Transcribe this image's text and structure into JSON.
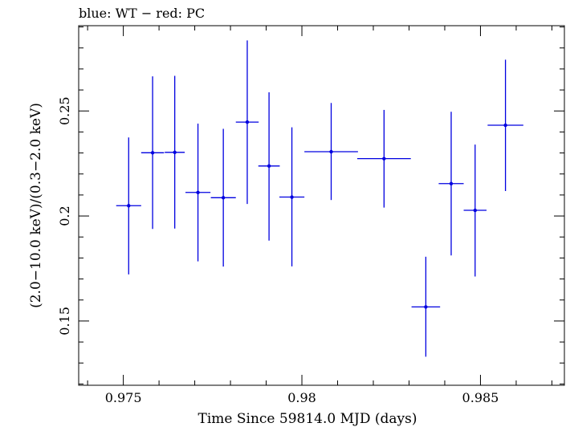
{
  "chart_data": {
    "type": "scatter",
    "title": "blue: WT − red: PC",
    "xlabel": "Time Since 59814.0 MJD (days)",
    "ylabel": "(2.0−10.0 keV)/(0.3−2.0 keV)",
    "xlim": [
      0.97375,
      0.98735
    ],
    "ylim": [
      0.1194,
      0.2906
    ],
    "x_ticks": [
      0.975,
      0.98,
      0.985
    ],
    "x_tick_labels": [
      "0.975",
      "0.98",
      "0.985"
    ],
    "y_ticks": [
      0.15,
      0.2,
      0.25
    ],
    "y_tick_labels": [
      "0.15",
      "0.2",
      "0.25"
    ],
    "grid": false,
    "series": [
      {
        "color": "#0000e0",
        "points": [
          {
            "x": 0.97515,
            "y": 0.2049,
            "xerr": 0.00035,
            "yerr_low": 0.0327,
            "yerr_high": 0.0325
          },
          {
            "x": 0.97582,
            "y": 0.2301,
            "xerr": 0.00032,
            "yerr_low": 0.0363,
            "yerr_high": 0.0364
          },
          {
            "x": 0.97644,
            "y": 0.2303,
            "xerr": 0.00028,
            "yerr_low": 0.0363,
            "yerr_high": 0.0364
          },
          {
            "x": 0.97709,
            "y": 0.2112,
            "xerr": 0.00035,
            "yerr_low": 0.0328,
            "yerr_high": 0.0328
          },
          {
            "x": 0.9778,
            "y": 0.2087,
            "xerr": 0.00035,
            "yerr_low": 0.0328,
            "yerr_high": 0.0328
          },
          {
            "x": 0.97847,
            "y": 0.2447,
            "xerr": 0.00032,
            "yerr_low": 0.039,
            "yerr_high": 0.0389
          },
          {
            "x": 0.97908,
            "y": 0.2238,
            "xerr": 0.0003,
            "yerr_low": 0.0355,
            "yerr_high": 0.0351
          },
          {
            "x": 0.97972,
            "y": 0.209,
            "xerr": 0.00035,
            "yerr_low": 0.033,
            "yerr_high": 0.0332
          },
          {
            "x": 0.98082,
            "y": 0.2306,
            "xerr": 0.00075,
            "yerr_low": 0.023,
            "yerr_high": 0.0232
          },
          {
            "x": 0.9823,
            "y": 0.2273,
            "xerr": 0.00075,
            "yerr_low": 0.0233,
            "yerr_high": 0.0232
          },
          {
            "x": 0.98347,
            "y": 0.1567,
            "xerr": 0.0004,
            "yerr_low": 0.0237,
            "yerr_high": 0.0239
          },
          {
            "x": 0.98418,
            "y": 0.2154,
            "xerr": 0.00035,
            "yerr_low": 0.0342,
            "yerr_high": 0.0342
          },
          {
            "x": 0.98485,
            "y": 0.2027,
            "xerr": 0.00032,
            "yerr_low": 0.0315,
            "yerr_high": 0.0313
          },
          {
            "x": 0.9857,
            "y": 0.2432,
            "xerr": 0.0005,
            "yerr_low": 0.0313,
            "yerr_high": 0.0312
          }
        ]
      }
    ]
  }
}
